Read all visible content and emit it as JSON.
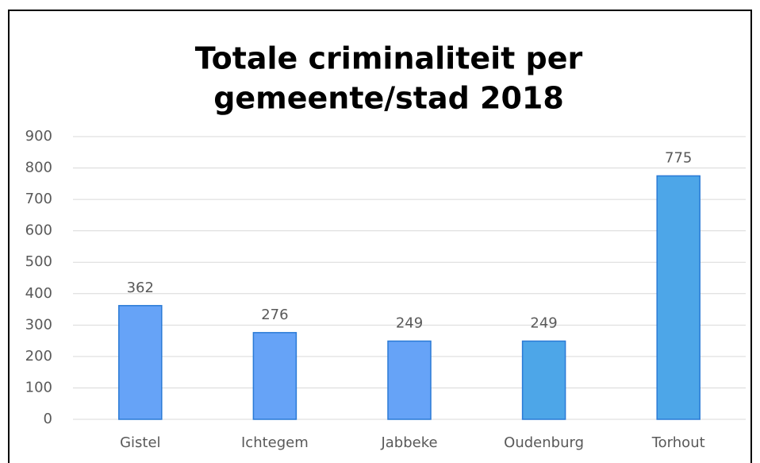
{
  "chart_data": {
    "type": "bar",
    "title": [
      "Totale criminaliteit per",
      "gemeente/stad 2018"
    ],
    "categories": [
      "Gistel",
      "Ichtegem",
      "Jabbeke",
      "Oudenburg",
      "Torhout"
    ],
    "values": [
      362,
      276,
      249,
      249,
      775
    ],
    "colors": [
      "#66a3f7",
      "#66a3f7",
      "#66a3f7",
      "#4da6e8",
      "#4da6e8"
    ],
    "ylim": [
      0,
      900
    ],
    "yticks": [
      0,
      100,
      200,
      300,
      400,
      500,
      600,
      700,
      800,
      900
    ],
    "grid": true
  }
}
